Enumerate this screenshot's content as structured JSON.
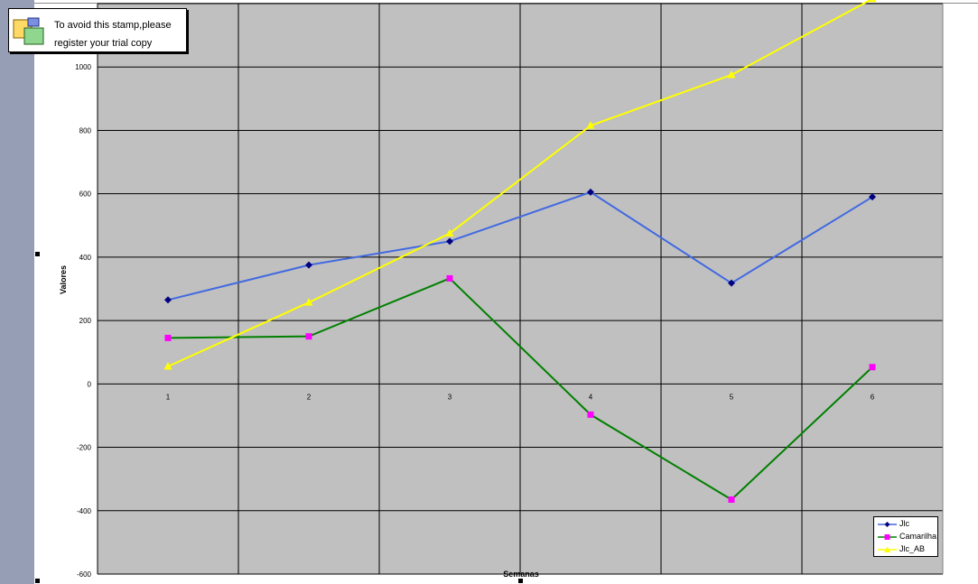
{
  "stamp": {
    "line1": "To avoid this stamp,please",
    "line2": "register your trial copy"
  },
  "chart_data": {
    "type": "line",
    "title": "",
    "xlabel": "Semanas",
    "ylabel": "Valores",
    "categories": [
      "1",
      "2",
      "3",
      "4",
      "5",
      "6"
    ],
    "ylim": [
      -600,
      1200
    ],
    "yticks": [
      -600,
      -400,
      -200,
      0,
      200,
      400,
      600,
      800,
      1000
    ],
    "grid": true,
    "plot_background": "#c0c0c0",
    "legend_position": "bottom-right",
    "series": [
      {
        "name": "Jlc",
        "values": [
          265,
          375,
          450,
          605,
          318,
          590
        ],
        "color": "#4169e1",
        "marker_color": "#000080",
        "marker": "diamond"
      },
      {
        "name": "Camarilha",
        "values": [
          145,
          150,
          333,
          -97,
          -365,
          53
        ],
        "color": "#008000",
        "marker_color": "#ff00ff",
        "marker": "square"
      },
      {
        "name": "Jlc_AB",
        "values": [
          55,
          257,
          475,
          815,
          975,
          1215
        ],
        "color": "#ffff00",
        "marker_color": "#ffff00",
        "marker": "triangle"
      }
    ]
  }
}
